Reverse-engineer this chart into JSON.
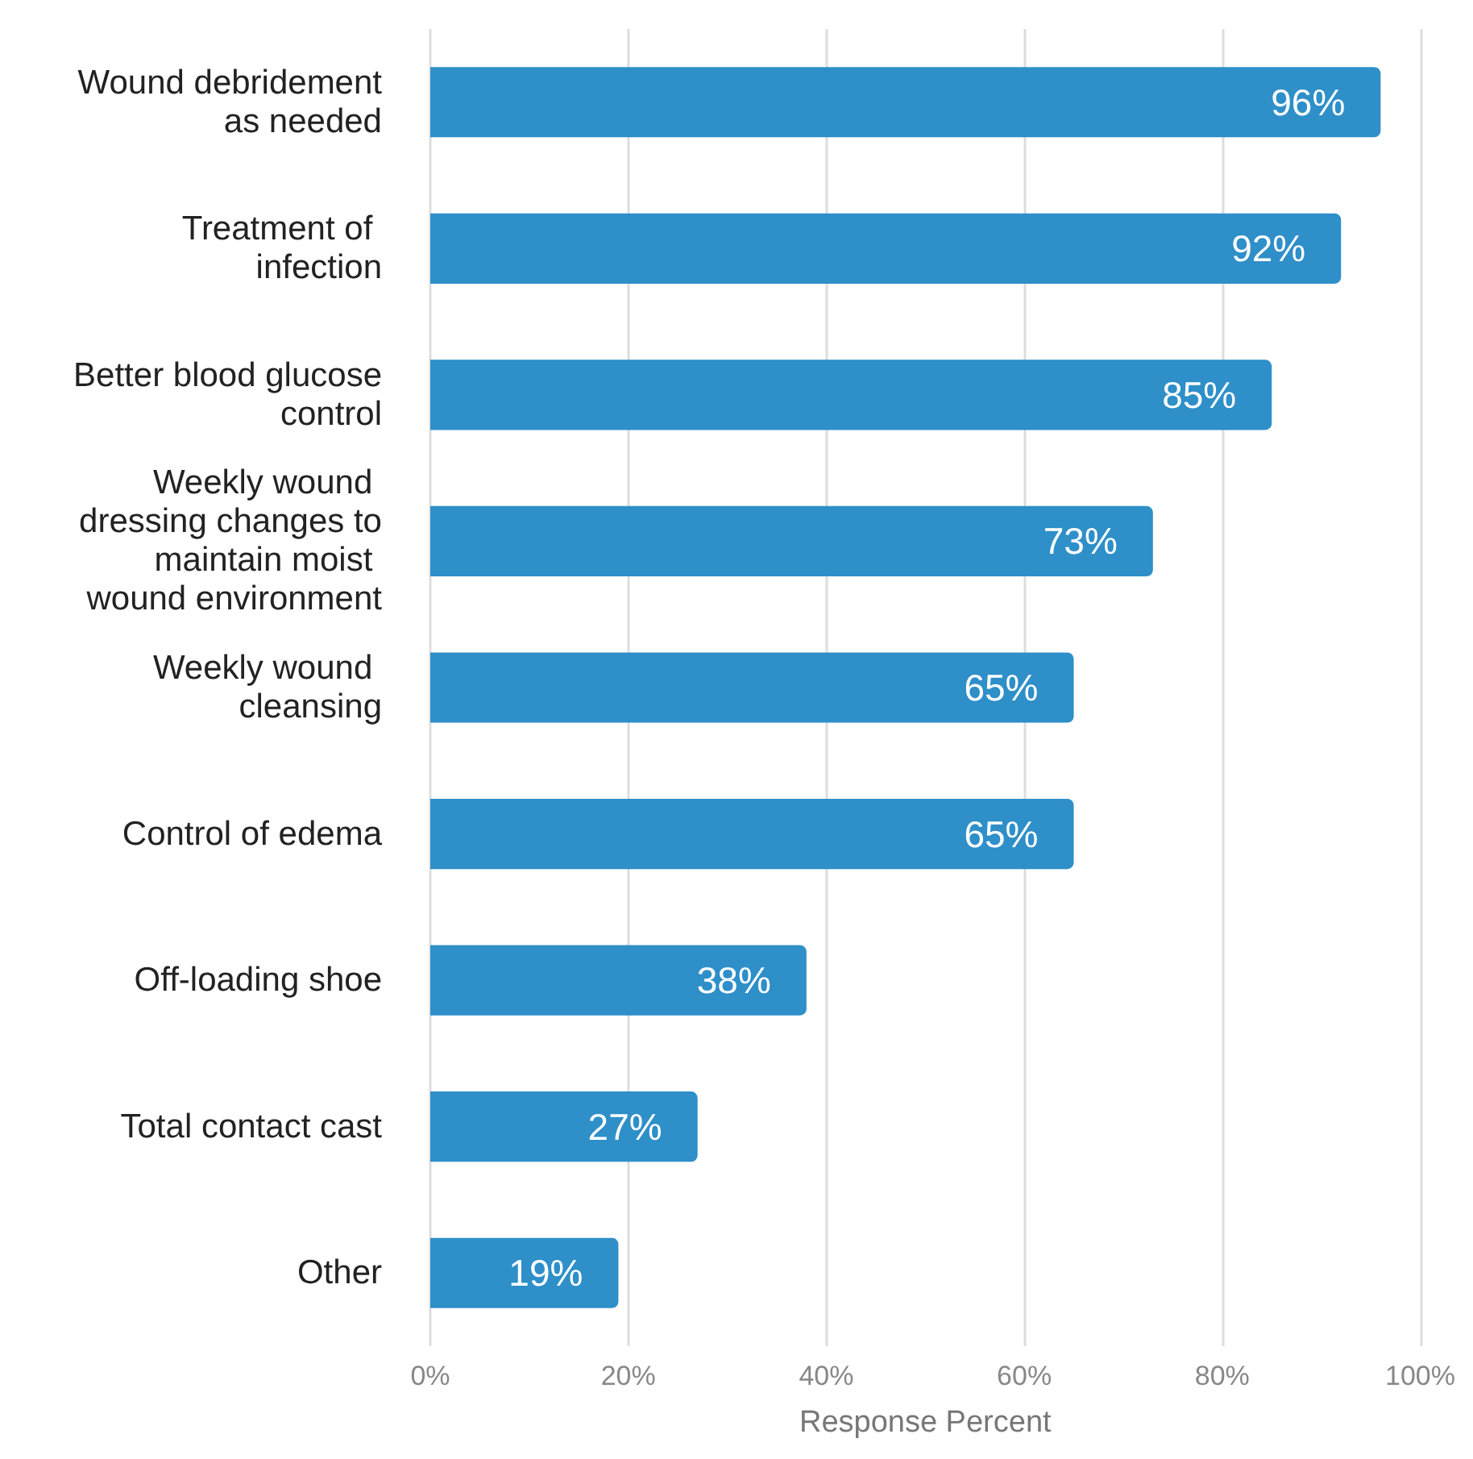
{
  "chart_data": {
    "type": "bar",
    "orientation": "horizontal",
    "xlabel": "Response Percent",
    "categories": [
      "Wound debridement as needed",
      "Treatment of infection",
      "Better blood glucose control",
      "Weekly wound dressing changes to maintain moist wound environment",
      "Weekly wound cleansing",
      "Control of edema",
      "Off-loading shoe",
      "Total contact cast",
      "Other"
    ],
    "values": [
      96,
      92,
      85,
      73,
      65,
      65,
      38,
      27,
      19
    ],
    "value_labels": [
      "96%",
      "92%",
      "85%",
      "73%",
      "65%",
      "65%",
      "38%",
      "27%",
      "19%"
    ],
    "color": "#2e8fc9",
    "xlim": [
      0,
      100
    ],
    "xticks": [
      {
        "value": 0,
        "label": "0%"
      },
      {
        "value": 20,
        "label": "20%"
      },
      {
        "value": 40,
        "label": "40%"
      },
      {
        "value": 60,
        "label": "60%"
      },
      {
        "value": 80,
        "label": "80%"
      },
      {
        "value": 100,
        "label": "100%"
      }
    ],
    "grid": "x"
  }
}
